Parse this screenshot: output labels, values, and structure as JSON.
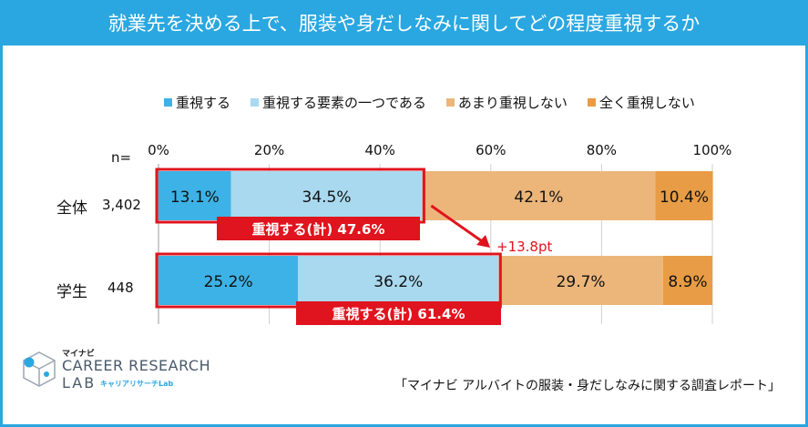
{
  "title": "就業先を決める上で、服装や身だしなみに関してどの程度重視するか",
  "n_label": "n=",
  "source": "「マイナビ アルバイトの服装・身だしなみに関する調査レポート」",
  "logo": {
    "brand": "マイナビ",
    "line1": "CAREER RESEARCH",
    "line2": "LAB",
    "sub": "キャリアリサーチLab"
  },
  "colors": {
    "title_bg": "#2aa7e0",
    "highlight": "#e0141e"
  },
  "chart_data": {
    "type": "bar",
    "orientation": "horizontal",
    "stacked": true,
    "title": "就業先を決める上で、服装や身だしなみに関してどの程度重視するか",
    "categories": [
      "全体",
      "学生"
    ],
    "n": [
      "3,402",
      "448"
    ],
    "xlim": [
      0,
      100
    ],
    "xticks": [
      "0%",
      "20%",
      "40%",
      "60%",
      "80%",
      "100%"
    ],
    "series": [
      {
        "name": "重視する",
        "color": "#3db2e6",
        "values": [
          13.1,
          25.2
        ],
        "labels": [
          "13.1%",
          "25.2%"
        ]
      },
      {
        "name": "重視する要素の一つである",
        "color": "#a9d9ef",
        "values": [
          34.5,
          36.2
        ],
        "labels": [
          "34.5%",
          "36.2%"
        ]
      },
      {
        "name": "あまり重視しない",
        "color": "#ecb67a",
        "values": [
          42.1,
          29.7
        ],
        "labels": [
          "42.1%",
          "29.7%"
        ]
      },
      {
        "name": "全く重視しない",
        "color": "#e89c45",
        "values": [
          10.4,
          8.9
        ],
        "labels": [
          "10.4%",
          "8.9%"
        ]
      }
    ],
    "annotations": {
      "totals": [
        "重視する(計) 47.6%",
        "重視する(計) 61.4%"
      ],
      "total_values": [
        47.6,
        61.4
      ],
      "difference": "+13.8pt"
    }
  }
}
